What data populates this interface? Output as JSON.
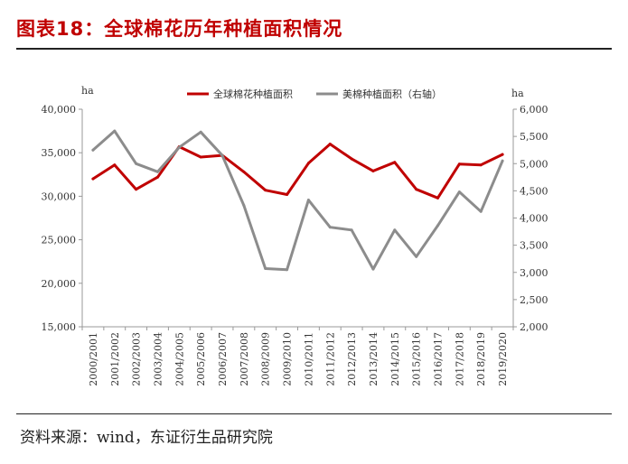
{
  "header": {
    "title": "图表18：全球棉花历年种植面积情况"
  },
  "footer": {
    "source": "资料来源：wind，东证衍生品研究院"
  },
  "colors": {
    "title": "#c00000",
    "series_global": "#c00000",
    "series_us": "#8c8c8c",
    "axis": "#999999"
  },
  "chart_data": {
    "type": "line",
    "title": "",
    "x": [
      "2000/2001",
      "2001/2002",
      "2002/2003",
      "2003/2004",
      "2004/2005",
      "2005/2006",
      "2006/2007",
      "2007/2008",
      "2008/2009",
      "2009/2010",
      "2010/2011",
      "2011/2012",
      "2012/2013",
      "2013/2014",
      "2014/2015",
      "2015/2016",
      "2016/2017",
      "2017/2018",
      "2018/2019",
      "2019/2020"
    ],
    "series": [
      {
        "name": "全球棉花种植面积",
        "axis": "left",
        "color": "#c00000",
        "values": [
          32000,
          33600,
          30800,
          32200,
          35700,
          34500,
          34700,
          32800,
          30700,
          30200,
          33800,
          36000,
          34300,
          32900,
          33900,
          30800,
          29800,
          33700,
          33600,
          34800
        ]
      },
      {
        "name": "美棉种植面积（右轴）",
        "axis": "right",
        "color": "#8c8c8c",
        "values": [
          5250,
          5600,
          5000,
          4850,
          5300,
          5580,
          5150,
          4230,
          3070,
          3050,
          4330,
          3830,
          3780,
          3060,
          3780,
          3290,
          3860,
          4480,
          4120,
          5050
        ]
      }
    ],
    "y_left": {
      "unit": "ha",
      "range": [
        15000,
        40000
      ],
      "ticks": [
        "15,000",
        "20,000",
        "25,000",
        "30,000",
        "35,000",
        "40,000"
      ],
      "tick_values": [
        15000,
        20000,
        25000,
        30000,
        35000,
        40000
      ]
    },
    "y_right": {
      "unit": "ha",
      "range": [
        2000,
        6000
      ],
      "ticks": [
        "2,000",
        "2,500",
        "3,000",
        "3,500",
        "4,000",
        "4,500",
        "5,000",
        "5,500",
        "6,000"
      ],
      "tick_values": [
        2000,
        2500,
        3000,
        3500,
        4000,
        4500,
        5000,
        5500,
        6000
      ]
    },
    "grid": false,
    "legend_position": "top"
  }
}
